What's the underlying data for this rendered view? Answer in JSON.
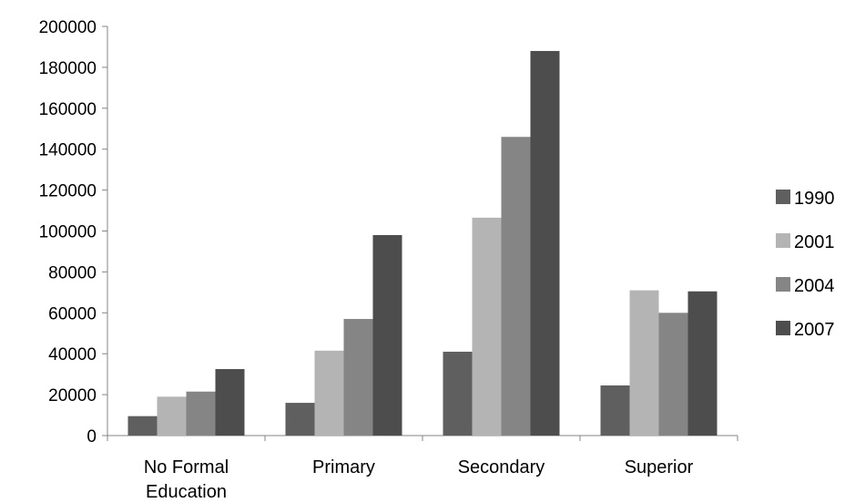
{
  "chart_data": {
    "type": "bar",
    "title": "",
    "xlabel": "",
    "ylabel": "",
    "categories": [
      [
        "No Formal",
        "Education"
      ],
      [
        "Primary"
      ],
      [
        "Secondary"
      ],
      [
        "Superior"
      ]
    ],
    "series": [
      {
        "name": "1990",
        "color": "#5f5f5f",
        "values": [
          9500,
          16000,
          41000,
          24500
        ]
      },
      {
        "name": "2001",
        "color": "#b4b4b4",
        "values": [
          19000,
          41500,
          106500,
          71000
        ]
      },
      {
        "name": "2004",
        "color": "#858585",
        "values": [
          21500,
          57000,
          146000,
          60000
        ]
      },
      {
        "name": "2007",
        "color": "#4d4d4d",
        "values": [
          32500,
          98000,
          188000,
          70500
        ]
      }
    ],
    "ylim": [
      0,
      200000
    ],
    "yticks": [
      "0",
      "20000",
      "40000",
      "60000",
      "80000",
      "100000",
      "120000",
      "140000",
      "160000",
      "180000",
      "200000"
    ],
    "grid": false,
    "legend_position": "right"
  }
}
